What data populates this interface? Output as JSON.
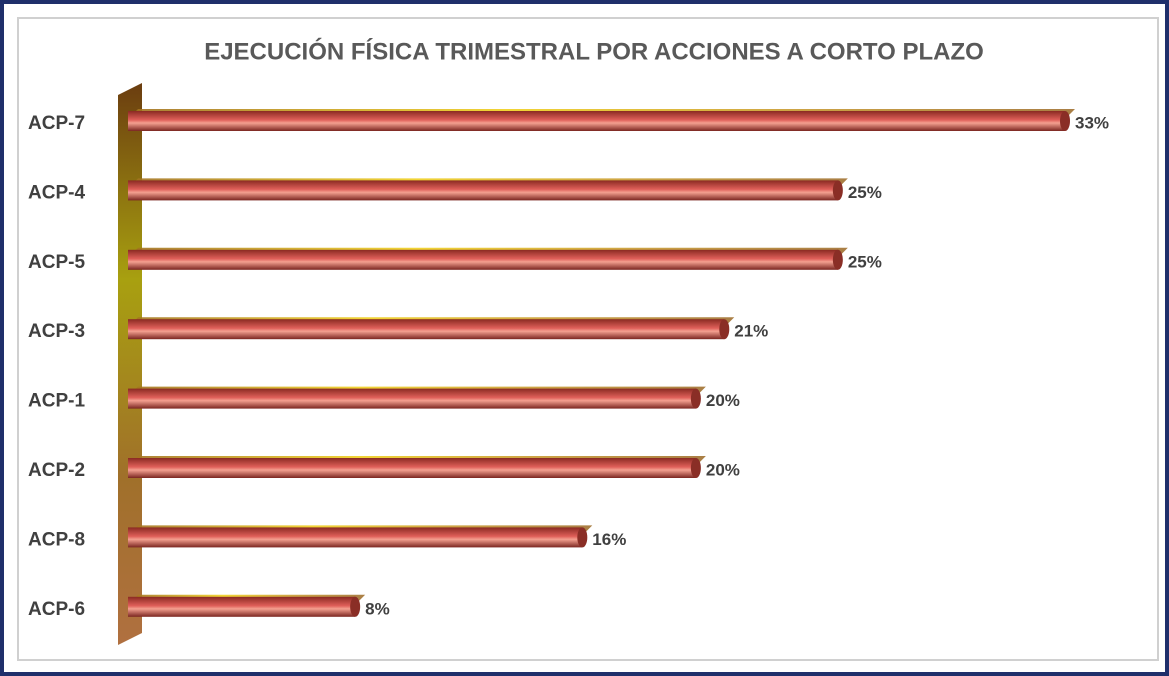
{
  "chart_data": {
    "type": "bar",
    "title": "EJECUCIÓN FÍSICA TRIMESTRAL POR ACCIONES A CORTO PLAZO",
    "categories": [
      "ACP-7",
      "ACP-4",
      "ACP-5",
      "ACP-3",
      "ACP-1",
      "ACP-2",
      "ACP-8",
      "ACP-6"
    ],
    "values": [
      33,
      25,
      25,
      21,
      20,
      20,
      16,
      8
    ],
    "value_labels": [
      "33%",
      "25%",
      "25%",
      "21%",
      "20%",
      "20%",
      "16%",
      "8%"
    ],
    "color": "#e0605a"
  }
}
